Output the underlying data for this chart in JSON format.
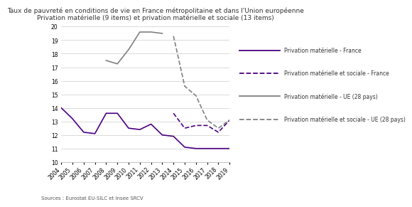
{
  "title_line1": "Taux de pauvreté en conditions de vie en France métropolitaine et dans l'Union européenne",
  "title_line2": "Privation matérielle (9 items) et privation matérielle et sociale (13 items)",
  "source": "Sources : Eurostat EU-SILC et Insee SRCV",
  "years": [
    2004,
    2005,
    2006,
    2007,
    2008,
    2009,
    2010,
    2011,
    2012,
    2013,
    2014,
    2015,
    2016,
    2017,
    2018,
    2019
  ],
  "series": {
    "priv_mat_france": {
      "label": "Privation matérielle - France",
      "color": "#4B0082",
      "linestyle": "solid",
      "linewidth": 1.2,
      "values": [
        14.0,
        13.2,
        12.2,
        12.1,
        13.6,
        13.6,
        12.5,
        12.4,
        12.8,
        12.0,
        11.9,
        11.1,
        11.0,
        11.0,
        11.0,
        11.0
      ]
    },
    "priv_mat_soc_france": {
      "label": "Privation matérielle et sociale - France",
      "color": "#4B0082",
      "linestyle": "dashed",
      "linewidth": 1.2,
      "values": [
        null,
        null,
        null,
        null,
        null,
        null,
        null,
        null,
        null,
        null,
        13.6,
        12.5,
        12.7,
        12.7,
        12.2,
        13.1
      ]
    },
    "priv_mat_ue": {
      "label": "Privation matérielle - UE (28 pays)",
      "color": "#808080",
      "linestyle": "solid",
      "linewidth": 1.2,
      "values": [
        null,
        null,
        null,
        null,
        17.5,
        17.25,
        18.3,
        19.6,
        19.6,
        19.5,
        null,
        null,
        null,
        null,
        null,
        null
      ]
    },
    "priv_mat_soc_ue": {
      "label": "Privation matérielle et sociale - UE (28 pays)",
      "color": "#808080",
      "linestyle": "dashed",
      "linewidth": 1.2,
      "values": [
        null,
        null,
        null,
        null,
        null,
        null,
        null,
        null,
        null,
        null,
        19.3,
        15.6,
        14.9,
        13.1,
        12.5,
        13.1
      ]
    }
  },
  "ylim": [
    10,
    20
  ],
  "yticks": [
    10,
    11,
    12,
    13,
    14,
    15,
    16,
    17,
    18,
    19,
    20
  ],
  "background_color": "#ffffff",
  "grid_color": "#cccccc",
  "title_fontsize": 6.5,
  "legend_fontsize": 5.5,
  "tick_fontsize": 5.5,
  "source_fontsize": 5.0
}
